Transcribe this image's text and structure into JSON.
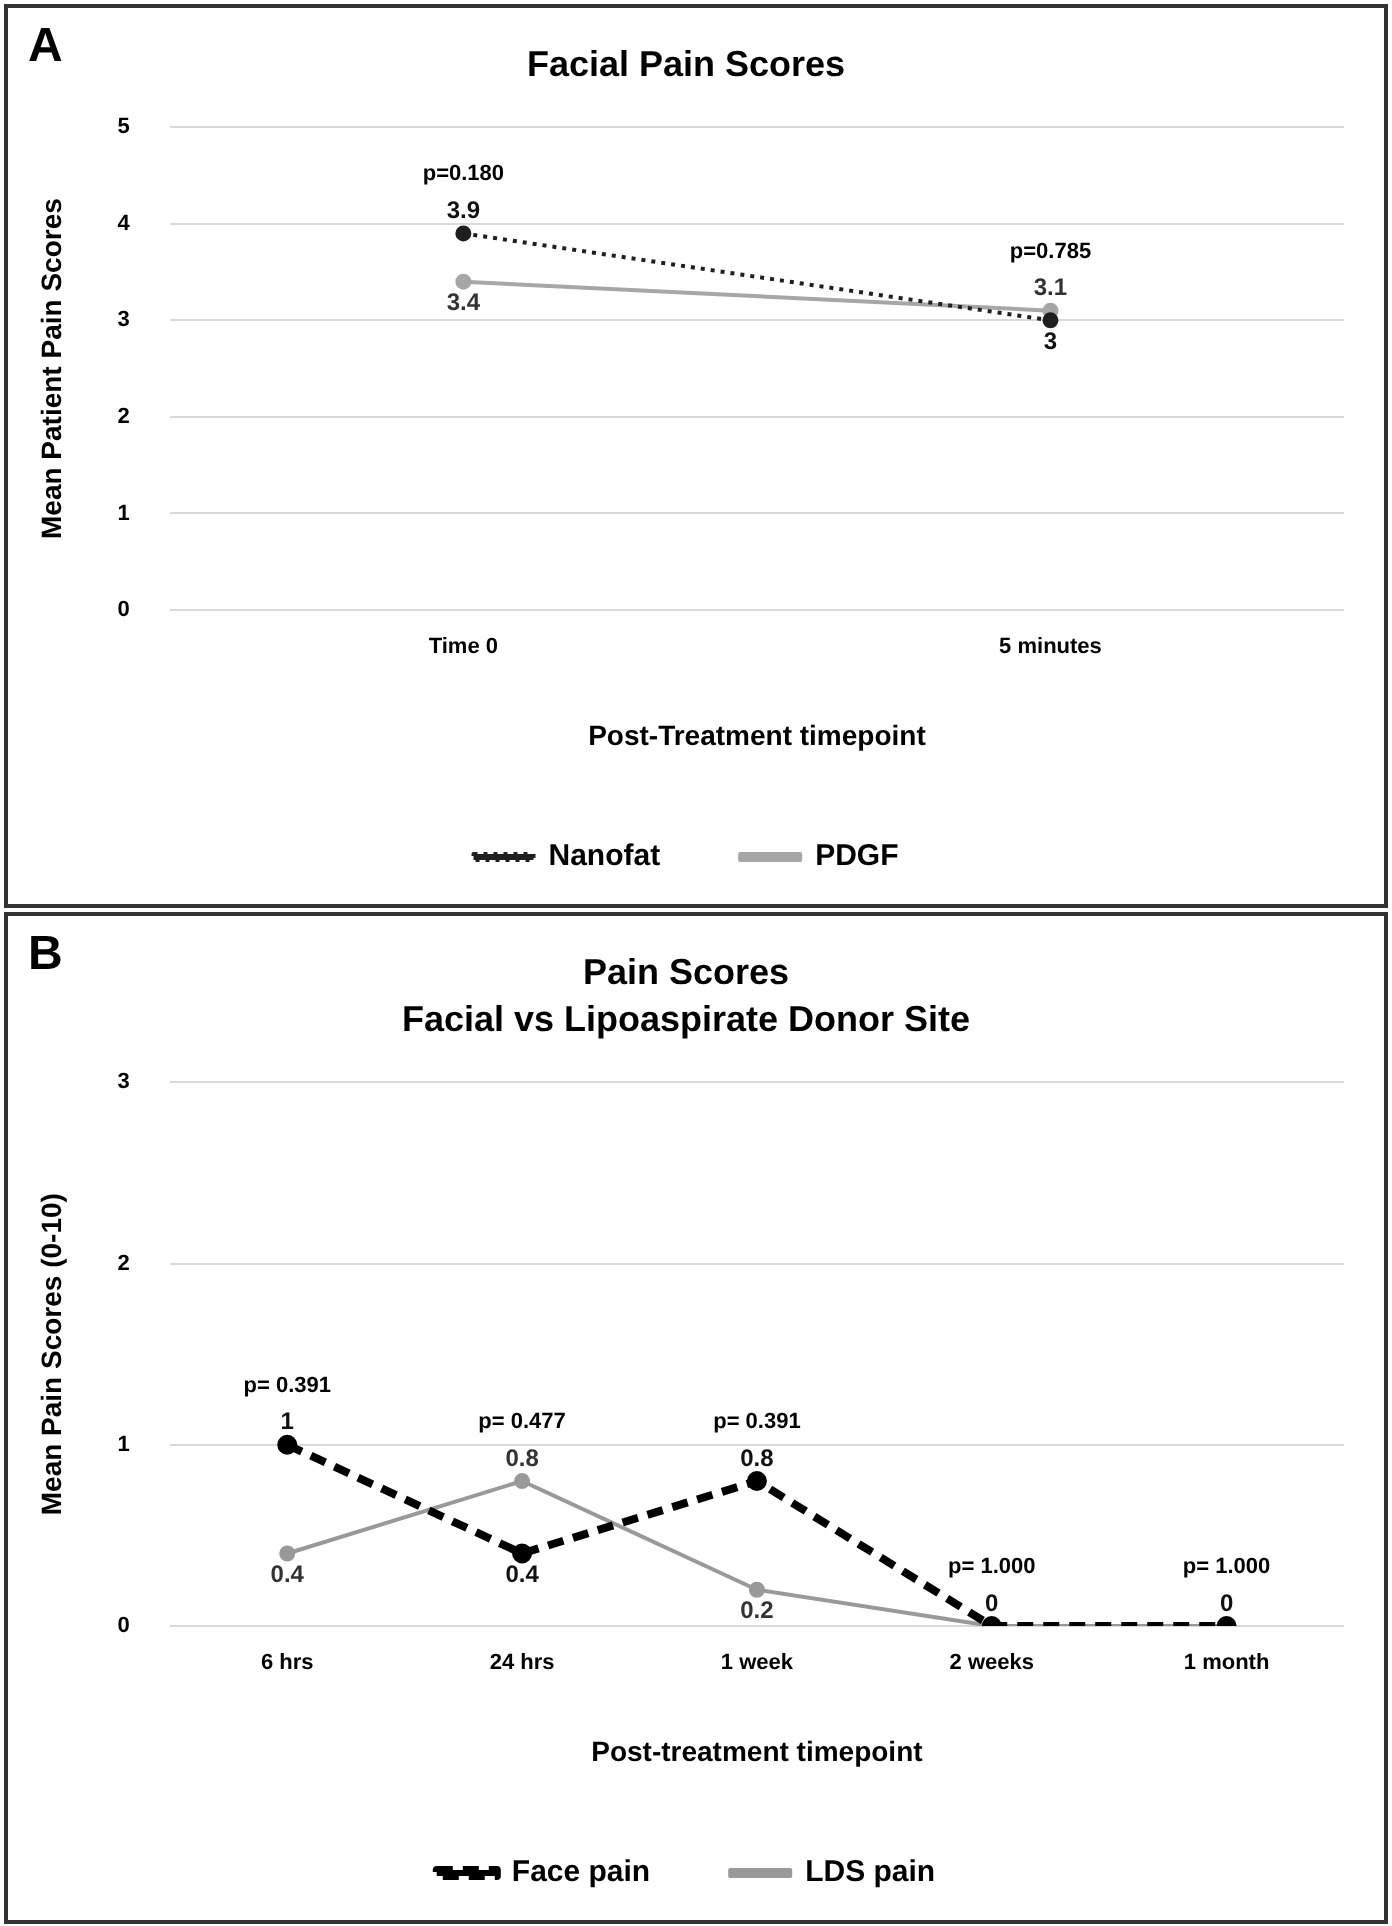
{
  "chart_data": [
    {
      "type": "line",
      "title": "Facial Pain Scores",
      "xlabel": "Post-Treatment timepoint",
      "ylabel": "Mean Patient Pain Scores",
      "categories": [
        "Time 0",
        "5 minutes"
      ],
      "series": [
        {
          "name": "Nanofat",
          "color": "#1f1f1f",
          "line_style": "dotted",
          "values": [
            3.9,
            3
          ]
        },
        {
          "name": "PDGF",
          "color": "#a6a6a6",
          "line_style": "solid",
          "values": [
            3.4,
            3.1
          ]
        }
      ],
      "ylim": [
        0,
        5
      ],
      "yticks": [
        0,
        1,
        2,
        3,
        4,
        5
      ],
      "grid": "y",
      "legend": "bottom",
      "marker": "circle",
      "data_labels": true,
      "annotations": [
        "A",
        "p=0.180",
        "p=0.785"
      ]
    },
    {
      "type": "line",
      "title": "Pain Scores",
      "subtitle": "Facial vs Lipoaspirate Donor Site",
      "xlabel": "Post-treatment timepoint",
      "ylabel": "Mean Pain Scores (0-10)",
      "categories": [
        "6 hrs",
        "24 hrs",
        "1 week",
        "2 weeks",
        "1 month"
      ],
      "series": [
        {
          "name": "Face pain",
          "color": "#000000",
          "line_style": "dashed",
          "values": [
            1,
            0.4,
            0.8,
            0,
            0
          ],
          "value_labels": [
            "1",
            "0.4",
            "0.8",
            "0",
            "0"
          ]
        },
        {
          "name": "LDS pain",
          "color": "#999999",
          "line_style": "solid",
          "values": [
            0.4,
            0.8,
            0.2,
            0,
            0
          ],
          "value_labels": [
            "0.4",
            "0.8",
            "0.2",
            null,
            null
          ]
        }
      ],
      "ylim": [
        0,
        3
      ],
      "yticks": [
        0,
        1,
        2,
        3
      ],
      "grid": "y",
      "legend": "bottom",
      "marker": "circle",
      "annotations": [
        "B",
        "p= 0.391",
        "p= 0.477",
        "p= 0.391",
        "p= 1.000",
        "p= 1.000"
      ]
    }
  ]
}
